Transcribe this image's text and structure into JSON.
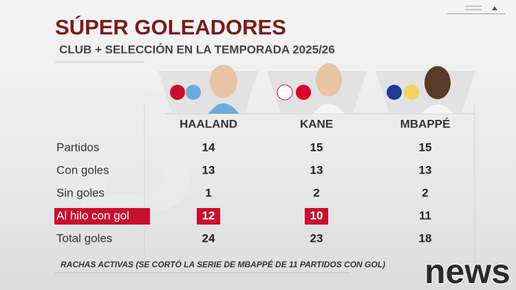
{
  "header": {
    "title": "SÚPER GOLEADORES",
    "subtitle": "CLUB + SELECCIÓN EN LA TEMPORADA 2025/26"
  },
  "table": {
    "players": [
      "HAALAND",
      "KANE",
      "MBAPPÉ"
    ],
    "rows": [
      {
        "label": "Partidos",
        "values": [
          "14",
          "15",
          "15"
        ]
      },
      {
        "label": "Con goles",
        "values": [
          "13",
          "13",
          "13"
        ]
      },
      {
        "label": "Sin goles",
        "values": [
          "1",
          "2",
          "2"
        ]
      },
      {
        "label": "Al hilo con gol",
        "values": [
          "12",
          "10",
          "11"
        ],
        "label_highlight": true,
        "highlight": [
          true,
          true,
          false
        ]
      },
      {
        "label": "Total goles",
        "values": [
          "24",
          "23",
          "18"
        ]
      }
    ]
  },
  "footer": {
    "note": "RACHAS ACTIVAS (SE CORTÓ LA SERIE DE MBAPPÉ DE 11 PARTIDOS CON GOL)"
  },
  "logo": "news"
}
